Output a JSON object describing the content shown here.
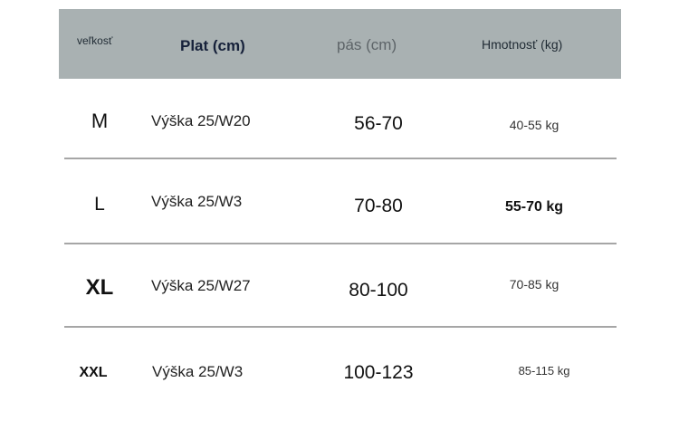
{
  "header": {
    "size": "veľkosť",
    "plat": "Plat (cm)",
    "waist": "pás (cm)",
    "weight": "Hmotnosť (kg)"
  },
  "rows": [
    {
      "size": "M",
      "plat": "Výška 25/W20",
      "waist": "56-70",
      "weight": "40-55 kg"
    },
    {
      "size": "L",
      "plat": "Výška 25/W3",
      "waist": "70-80",
      "weight": "55-70 kg"
    },
    {
      "size": "XL",
      "plat": "Výška 25/W27",
      "waist": "80-100",
      "weight": "70-85 kg"
    },
    {
      "size": "XXL",
      "plat": "Výška 25/W3",
      "waist": "100-123",
      "weight": "85-115 kg"
    }
  ],
  "colors": {
    "header_bg": "#a9b1b2",
    "divider": "#a6a6a6"
  }
}
